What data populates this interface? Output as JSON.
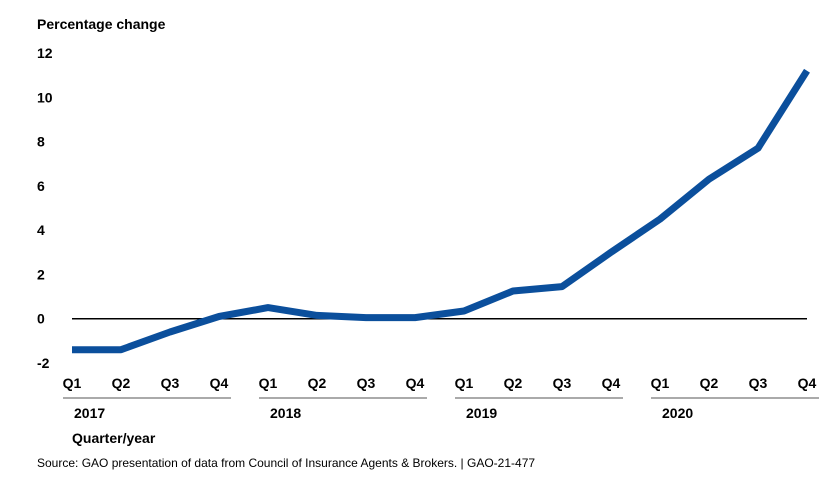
{
  "chart_data": {
    "type": "line",
    "ylabel": "Percentage change",
    "xlabel": "Quarter/year",
    "ylim": [
      -2,
      12
    ],
    "yticks": [
      -2,
      0,
      2,
      4,
      6,
      8,
      10,
      12
    ],
    "quarters": [
      "Q1",
      "Q2",
      "Q3",
      "Q4",
      "Q1",
      "Q2",
      "Q3",
      "Q4",
      "Q1",
      "Q2",
      "Q3",
      "Q4",
      "Q1",
      "Q2",
      "Q3",
      "Q4"
    ],
    "years": [
      "2017",
      "2018",
      "2019",
      "2020"
    ],
    "series": [
      {
        "values": [
          -1.4,
          -1.4,
          -0.6,
          0.1,
          0.5,
          0.15,
          0.05,
          0.05,
          0.35,
          1.25,
          1.45,
          3.0,
          4.5,
          6.3,
          7.7,
          11.2
        ],
        "color": "#0b4f9c"
      }
    ],
    "source": "Source: GAO presentation of data from Council of Insurance Agents & Brokers.  |  GAO-21-477"
  }
}
